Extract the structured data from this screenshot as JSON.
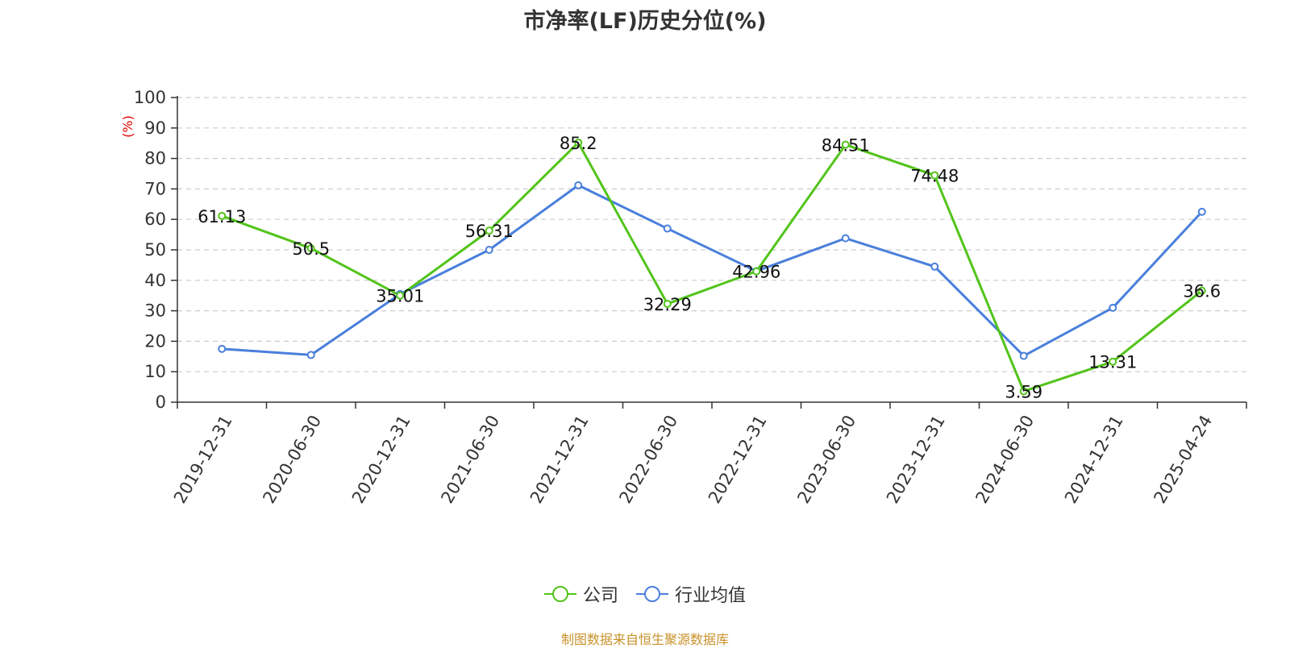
{
  "title": "市净率(LF)历史分位(%)",
  "source": "制图数据来自恒生聚源数据库",
  "colors": {
    "source": "#c8922a",
    "ylabel": "#e00000"
  },
  "chart_data": {
    "type": "line",
    "categories": [
      "2019-12-31",
      "2020-06-30",
      "2020-12-31",
      "2021-06-30",
      "2021-12-31",
      "2022-06-30",
      "2022-12-31",
      "2023-06-30",
      "2023-12-31",
      "2024-06-30",
      "2024-12-31",
      "2025-04-24"
    ],
    "series": [
      {
        "name": "公司",
        "color": "#52c41a",
        "values": [
          61.13,
          50.5,
          35.01,
          56.31,
          85.2,
          32.29,
          42.96,
          84.51,
          74.48,
          3.59,
          13.31,
          36.6
        ],
        "labels": [
          "61.13",
          "50.5",
          "35.01",
          "56.31",
          "85.2",
          "32.29",
          "42.96",
          "84.51",
          "74.48",
          "3.59",
          "13.31",
          "36.6"
        ]
      },
      {
        "name": "行业均值",
        "color": "#4a7fdc",
        "values": [
          17.5,
          15.5,
          35.5,
          50.0,
          71.2,
          57.0,
          43.0,
          53.8,
          44.5,
          15.2,
          31.0,
          62.5
        ]
      }
    ],
    "ylabel": "(%)",
    "yticks": [
      "0",
      "10",
      "20",
      "30",
      "40",
      "50",
      "60",
      "70",
      "80",
      "90",
      "100"
    ],
    "ylim": [
      0,
      100
    ],
    "grid": true,
    "legend": "bottom-center"
  }
}
